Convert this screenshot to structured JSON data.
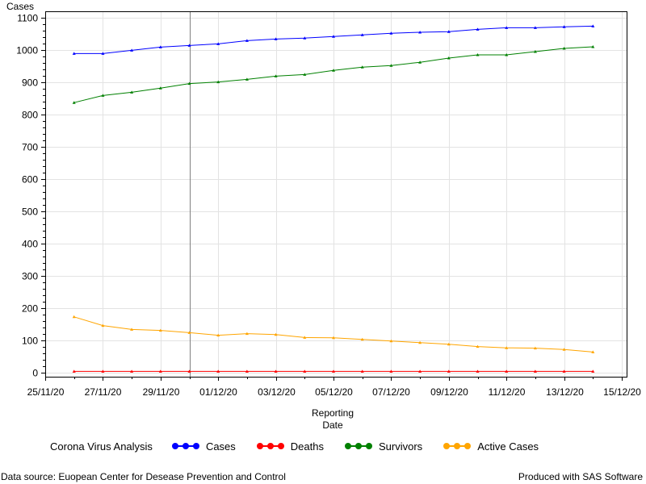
{
  "chart_data": {
    "type": "line",
    "ylabel": "Cases",
    "xlabel_lines": [
      "Reporting",
      "Date"
    ],
    "ylim": [
      0,
      1100
    ],
    "yticks": [
      0,
      100,
      200,
      300,
      400,
      500,
      600,
      700,
      800,
      900,
      1000,
      1100
    ],
    "xlim": [
      "2020-11-25",
      "2020-12-15"
    ],
    "xticks": [
      {
        "date": "2020-11-25",
        "label": "25/11/20"
      },
      {
        "date": "2020-11-27",
        "label": "27/11/20"
      },
      {
        "date": "2020-11-29",
        "label": "29/11/20"
      },
      {
        "date": "2020-12-01",
        "label": "01/12/20"
      },
      {
        "date": "2020-12-03",
        "label": "03/12/20"
      },
      {
        "date": "2020-12-05",
        "label": "05/12/20"
      },
      {
        "date": "2020-12-07",
        "label": "07/12/20"
      },
      {
        "date": "2020-12-09",
        "label": "09/12/20"
      },
      {
        "date": "2020-12-11",
        "label": "11/12/20"
      },
      {
        "date": "2020-12-13",
        "label": "13/12/20"
      },
      {
        "date": "2020-12-15",
        "label": "15/12/20"
      }
    ],
    "reference_line_date": "2020-11-30",
    "grid": true,
    "x": [
      "2020-11-26",
      "2020-11-27",
      "2020-11-28",
      "2020-11-29",
      "2020-11-30",
      "2020-12-01",
      "2020-12-02",
      "2020-12-03",
      "2020-12-04",
      "2020-12-05",
      "2020-12-06",
      "2020-12-07",
      "2020-12-08",
      "2020-12-09",
      "2020-12-10",
      "2020-12-11",
      "2020-12-12",
      "2020-12-13",
      "2020-12-14"
    ],
    "series": [
      {
        "name": "Cases",
        "color": "#0000ff",
        "values": [
          989,
          989,
          999,
          1009,
          1014,
          1019,
          1029,
          1034,
          1037,
          1042,
          1047,
          1052,
          1055,
          1057,
          1064,
          1069,
          1069,
          1072,
          1074
        ]
      },
      {
        "name": "Deaths",
        "color": "#ff0000",
        "values": [
          4,
          4,
          4,
          4,
          4,
          4,
          4,
          4,
          4,
          4,
          4,
          4,
          4,
          4,
          4,
          4,
          4,
          4,
          4
        ]
      },
      {
        "name": "Survivors",
        "color": "#008000",
        "values": [
          837,
          859,
          869,
          882,
          896,
          901,
          909,
          919,
          924,
          937,
          947,
          952,
          962,
          975,
          985,
          985,
          995,
          1005,
          1010
        ]
      },
      {
        "name": "Active Cases",
        "color": "#ffa500",
        "values": [
          173,
          146,
          134,
          131,
          124,
          116,
          121,
          118,
          109,
          108,
          103,
          98,
          93,
          88,
          81,
          77,
          76,
          72,
          64
        ]
      }
    ]
  },
  "legend": {
    "title": "Corona Virus Analysis",
    "items": [
      {
        "label": "Cases",
        "color": "#0000ff"
      },
      {
        "label": "Deaths",
        "color": "#ff0000"
      },
      {
        "label": "Survivors",
        "color": "#008000"
      },
      {
        "label": "Active Cases",
        "color": "#ffa500"
      }
    ]
  },
  "footer": {
    "source": "Data source: Euopean Center for Desease Prevention and Control",
    "credit": "Produced with SAS Software"
  }
}
